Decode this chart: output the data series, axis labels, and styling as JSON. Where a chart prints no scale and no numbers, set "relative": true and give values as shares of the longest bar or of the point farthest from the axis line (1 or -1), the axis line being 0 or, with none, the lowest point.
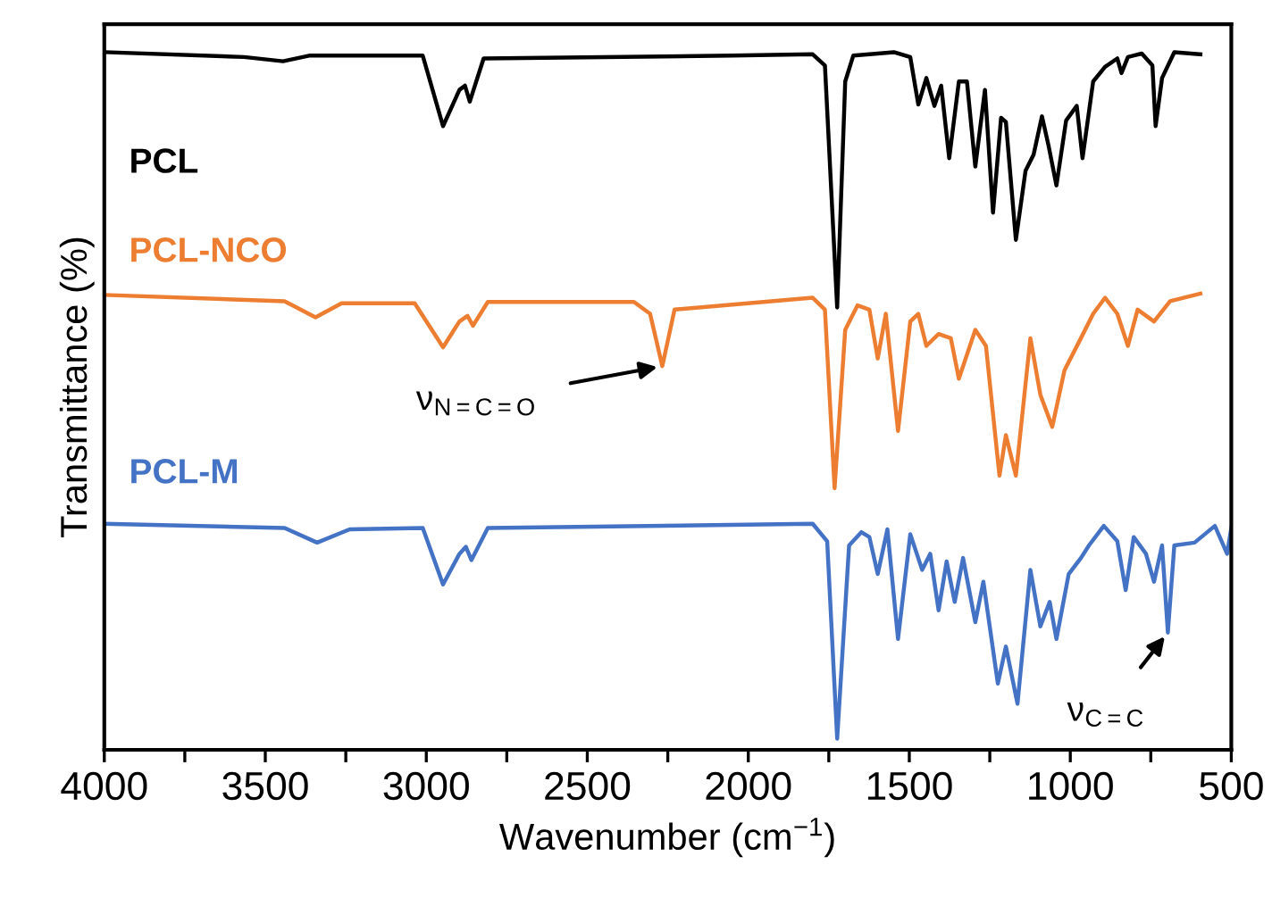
{
  "chart_data": {
    "type": "line",
    "relative": true,
    "xlabel": "Wavenumber (cm$^{−1}$)",
    "ylabel": "Transmittance (%)",
    "xlim": [
      4000,
      500
    ],
    "xticks": [
      4000,
      {
        "value": 3750,
        "label": null
      },
      3500,
      {
        "value": 3250,
        "label": null
      },
      3000,
      {
        "value": 2750,
        "label": null
      },
      2500,
      {
        "value": 2250,
        "label": null
      },
      2000,
      {
        "value": 1750,
        "label": null
      },
      1500,
      {
        "value": 1250,
        "label": null
      },
      1000,
      {
        "value": 750,
        "label": null
      },
      500
    ],
    "tick_labels": "x",
    "grid": false,
    "line_style": "solid",
    "marker": "none",
    "annotations": [
      {
        "text": "ν$_{N=C=O}$",
        "x": 2267,
        "y": 0.55
      },
      {
        "text": "ν$_{C=C}$",
        "x": 697,
        "y": 0.168
      }
    ],
    "series": [
      {
        "name": "PCL",
        "color": "#000000",
        "x": [
          4000,
          3566,
          3445,
          3364,
          3011,
          2948,
          2897,
          2880,
          2865,
          2822,
          2052,
          1800,
          1762,
          1724,
          1699,
          1674,
          1548,
          1497,
          1472,
          1447,
          1422,
          1401,
          1376,
          1346,
          1321,
          1295,
          1265,
          1240,
          1215,
          1200,
          1169,
          1139,
          1114,
          1088,
          1068,
          1043,
          1013,
          980,
          962,
          929,
          892,
          854,
          841,
          821,
          778,
          745,
          735,
          715,
          677,
          596
        ],
        "values": [
          1.0,
          0.993,
          0.987,
          0.995,
          0.995,
          0.894,
          0.946,
          0.952,
          0.929,
          0.991,
          0.995,
          0.997,
          0.981,
          0.634,
          0.958,
          0.995,
          1.0,
          0.993,
          0.925,
          0.963,
          0.923,
          0.952,
          0.848,
          0.958,
          0.958,
          0.836,
          0.946,
          0.77,
          0.906,
          0.9,
          0.731,
          0.83,
          0.853,
          0.908,
          0.867,
          0.809,
          0.902,
          0.923,
          0.848,
          0.958,
          0.979,
          0.991,
          0.97,
          0.993,
          0.998,
          0.981,
          0.894,
          0.963,
          1.0,
          0.997
        ]
      },
      {
        "name": "PCL-NCO",
        "color": "#ed7d31",
        "x": [
          4000,
          3440,
          3344,
          3263,
          3036,
          2948,
          2897,
          2872,
          2855,
          2809,
          2355,
          2305,
          2267,
          2229,
          1800,
          1762,
          1732,
          1699,
          1661,
          1624,
          1598,
          1573,
          1535,
          1497,
          1472,
          1447,
          1409,
          1371,
          1346,
          1295,
          1262,
          1220,
          1200,
          1169,
          1124,
          1093,
          1056,
          1018,
          967,
          929,
          892,
          854,
          821,
          791,
          740,
          690,
          596
        ],
        "values": [
          0.652,
          0.643,
          0.62,
          0.64,
          0.64,
          0.577,
          0.614,
          0.622,
          0.608,
          0.642,
          0.642,
          0.625,
          0.55,
          0.631,
          0.648,
          0.631,
          0.375,
          0.602,
          0.637,
          0.631,
          0.561,
          0.625,
          0.457,
          0.614,
          0.625,
          0.579,
          0.596,
          0.59,
          0.532,
          0.602,
          0.579,
          0.393,
          0.451,
          0.393,
          0.59,
          0.509,
          0.463,
          0.544,
          0.59,
          0.625,
          0.648,
          0.625,
          0.579,
          0.631,
          0.614,
          0.643,
          0.654
        ]
      },
      {
        "name": "PCL-M",
        "color": "#4472c4",
        "x": [
          4000,
          3440,
          3339,
          3238,
          3011,
          2948,
          2897,
          2877,
          2860,
          2809,
          1800,
          1755,
          1724,
          1687,
          1649,
          1624,
          1598,
          1568,
          1535,
          1497,
          1460,
          1435,
          1409,
          1384,
          1359,
          1333,
          1295,
          1270,
          1225,
          1200,
          1164,
          1124,
          1093,
          1064,
          1043,
          1005,
          967,
          942,
          896,
          854,
          828,
          803,
          765,
          740,
          715,
          697,
          677,
          614,
          551,
          513,
          500
        ],
        "values": [
          0.324,
          0.318,
          0.297,
          0.316,
          0.318,
          0.237,
          0.281,
          0.291,
          0.272,
          0.318,
          0.324,
          0.299,
          0.016,
          0.293,
          0.312,
          0.305,
          0.252,
          0.316,
          0.159,
          0.309,
          0.258,
          0.281,
          0.2,
          0.27,
          0.212,
          0.275,
          0.183,
          0.241,
          0.095,
          0.148,
          0.066,
          0.258,
          0.177,
          0.212,
          0.159,
          0.252,
          0.275,
          0.293,
          0.321,
          0.299,
          0.229,
          0.305,
          0.281,
          0.241,
          0.293,
          0.168,
          0.293,
          0.297,
          0.321,
          0.281,
          0.318
        ]
      }
    ]
  }
}
